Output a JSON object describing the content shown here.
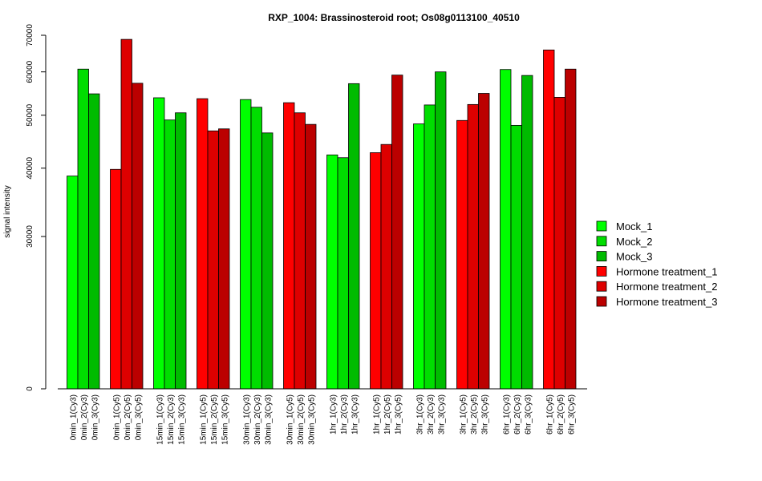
{
  "chart_data": {
    "type": "bar",
    "title": "RXP_1004: Brassinosteroid root; Os08g0113100_40510",
    "xlabel": "",
    "ylabel": "signal intensity",
    "y_ticks": [
      0,
      30000,
      40000,
      50000,
      60000,
      70000
    ],
    "y_tick_labels": [
      "0",
      "30000",
      "40000",
      "50000",
      "60000",
      "70000"
    ],
    "y_scale": "log",
    "ylim": [
      0,
      70000
    ],
    "grid": false,
    "legend_position": "right",
    "series": [
      {
        "name": "Mock_1",
        "color": "#00FF00"
      },
      {
        "name": "Mock_2",
        "color": "#00DD00"
      },
      {
        "name": "Mock_3",
        "color": "#00BB00"
      },
      {
        "name": "Hormone treatment_1",
        "color": "#FF0000"
      },
      {
        "name": "Hormone treatment_2",
        "color": "#DD0000"
      },
      {
        "name": "Hormone treatment_3",
        "color": "#BB0000"
      }
    ],
    "groups": [
      {
        "series_index": 0,
        "bars": [
          {
            "label": "0min_1(Cy3)",
            "value": 38700
          },
          {
            "label": "0min_2(Cy3)",
            "value": 60700
          },
          {
            "label": "0min_3(Cy3)",
            "value": 54700
          }
        ]
      },
      {
        "series_index": 3,
        "bars": [
          {
            "label": "0min_1(Cy5)",
            "value": 39800
          },
          {
            "label": "0min_2(Cy5)",
            "value": 68800
          },
          {
            "label": "0min_3(Cy5)",
            "value": 57200
          }
        ]
      },
      {
        "series_index": 0,
        "bars": [
          {
            "label": "15min_1(Cy3)",
            "value": 53800
          },
          {
            "label": "15min_2(Cy3)",
            "value": 49000
          },
          {
            "label": "15min_3(Cy3)",
            "value": 50500
          }
        ]
      },
      {
        "series_index": 3,
        "bars": [
          {
            "label": "15min_1(Cy5)",
            "value": 53600
          },
          {
            "label": "15min_2(Cy5)",
            "value": 46800
          },
          {
            "label": "15min_3(Cy5)",
            "value": 47200
          }
        ]
      },
      {
        "series_index": 0,
        "bars": [
          {
            "label": "30min_1(Cy3)",
            "value": 53400
          },
          {
            "label": "30min_2(Cy3)",
            "value": 51700
          },
          {
            "label": "30min_3(Cy3)",
            "value": 46400
          }
        ]
      },
      {
        "series_index": 3,
        "bars": [
          {
            "label": "30min_1(Cy5)",
            "value": 52700
          },
          {
            "label": "30min_2(Cy5)",
            "value": 50500
          },
          {
            "label": "30min_3(Cy5)",
            "value": 48100
          }
        ]
      },
      {
        "series_index": 0,
        "bars": [
          {
            "label": "1hr_1(Cy3)",
            "value": 42300
          },
          {
            "label": "1hr_2(Cy3)",
            "value": 41800
          },
          {
            "label": "1hr_3(Cy3)",
            "value": 57100
          }
        ]
      },
      {
        "series_index": 3,
        "bars": [
          {
            "label": "1hr_1(Cy5)",
            "value": 42700
          },
          {
            "label": "1hr_2(Cy5)",
            "value": 44200
          },
          {
            "label": "1hr_3(Cy5)",
            "value": 59200
          }
        ]
      },
      {
        "series_index": 0,
        "bars": [
          {
            "label": "3hr_1(Cy3)",
            "value": 48200
          },
          {
            "label": "3hr_2(Cy3)",
            "value": 52200
          },
          {
            "label": "3hr_3(Cy3)",
            "value": 60000
          }
        ]
      },
      {
        "series_index": 3,
        "bars": [
          {
            "label": "3hr_1(Cy5)",
            "value": 48900
          },
          {
            "label": "3hr_2(Cy5)",
            "value": 52300
          },
          {
            "label": "3hr_3(Cy5)",
            "value": 54800
          }
        ]
      },
      {
        "series_index": 0,
        "bars": [
          {
            "label": "6hr_1(Cy3)",
            "value": 60600
          },
          {
            "label": "6hr_2(Cy3)",
            "value": 47900
          },
          {
            "label": "6hr_3(Cy3)",
            "value": 59100
          }
        ]
      },
      {
        "series_index": 3,
        "bars": [
          {
            "label": "6hr_1(Cy5)",
            "value": 65800
          },
          {
            "label": "6hr_2(Cy5)",
            "value": 53900
          },
          {
            "label": "6hr_3(Cy5)",
            "value": 60700
          }
        ]
      }
    ]
  }
}
